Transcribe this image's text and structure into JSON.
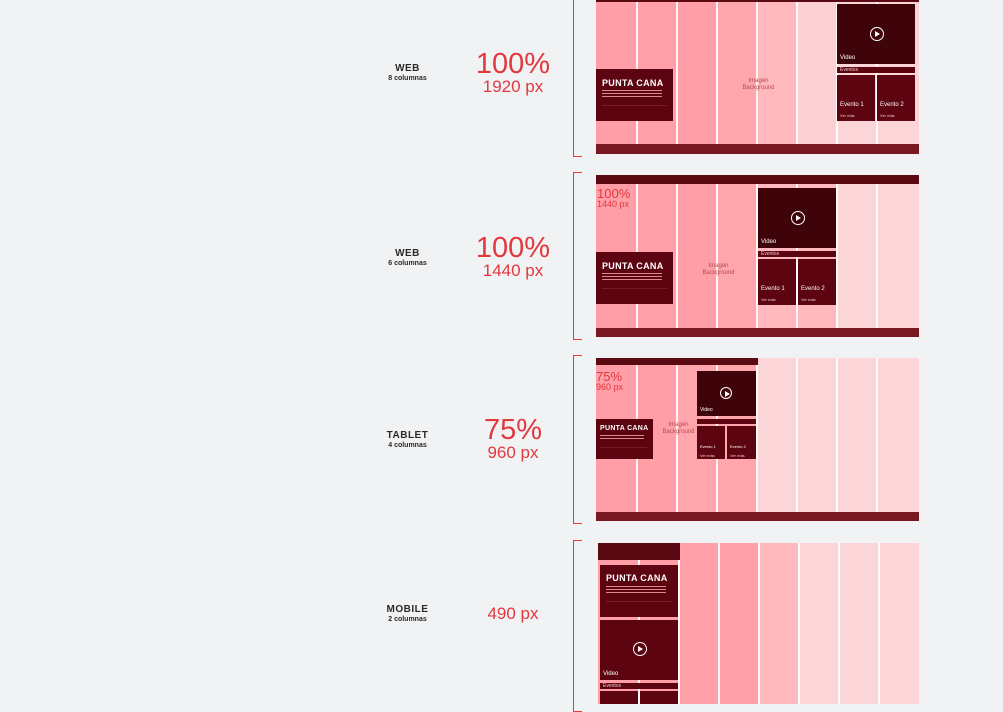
{
  "rows": [
    {
      "device": "WEB",
      "columns": "8 columnas",
      "percent": "100%",
      "pixels": "1920 px"
    },
    {
      "device": "WEB",
      "columns": "6 columnas",
      "percent": "100%",
      "pixels": "1440 px"
    },
    {
      "device": "TABLET",
      "columns": "4 columnas",
      "percent": "75%",
      "pixels": "960 px"
    },
    {
      "device": "MOBILE",
      "columns": "2 columnas",
      "percent": "",
      "pixels": "490 px"
    }
  ],
  "mockup": {
    "hero_title": "PUNTA CANA",
    "video_label": "Video",
    "events_label": "Eventos",
    "event1": "Evento 1",
    "event2": "Evento 2",
    "see_more": "Ver más",
    "bg_line1": "Imagen",
    "bg_line2": "Background",
    "overlay_100": "100%",
    "overlay_1440": "1440 px",
    "overlay_75": "75%",
    "overlay_960": "960 px"
  },
  "colors": {
    "accent": "#e0393e",
    "dark_card": "#5c0510",
    "column_pink": "#ff9ea6",
    "column_pale": "#fbd5d8"
  }
}
